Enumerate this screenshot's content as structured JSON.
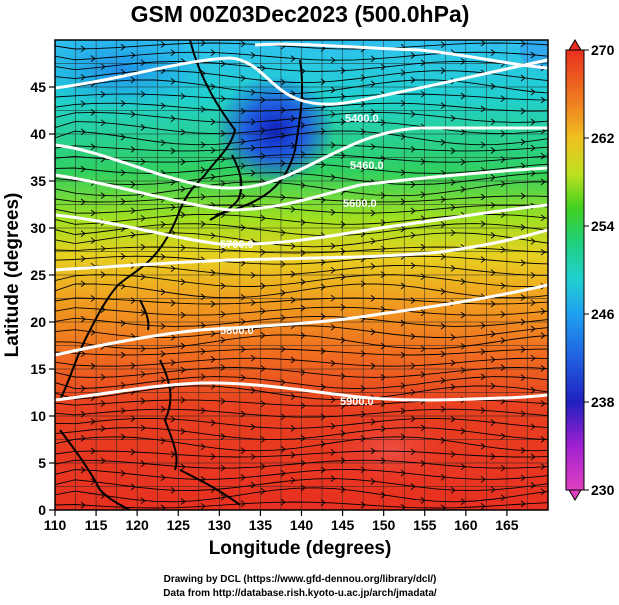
{
  "title": "GSM 00Z03Dec2023 (500.0hPa)",
  "xlabel": "Longitude (degrees)",
  "ylabel": "Latitude  (degrees)",
  "credit_line1": "Drawing by DCL (https://www.gfd-dennou.org/library/dcl/)",
  "credit_line2": "Data from http://database.rish.kyoto-u.ac.jp/arch/jmadata/",
  "x_ticks": [
    "110",
    "115",
    "120",
    "125",
    "130",
    "135",
    "140",
    "145",
    "150",
    "155",
    "160",
    "165"
  ],
  "y_ticks": [
    "0",
    "5",
    "10",
    "15",
    "20",
    "25",
    "30",
    "35",
    "40",
    "45"
  ],
  "colorbar": {
    "ticks": [
      "230",
      "238",
      "246",
      "254",
      "262",
      "270"
    ],
    "colors": [
      "#e040c0",
      "#a020d0",
      "#2020c0",
      "#2060e0",
      "#20a0f0",
      "#20d0d0",
      "#20d080",
      "#40d020",
      "#a0e020",
      "#e0e020",
      "#f0a020",
      "#f06020",
      "#e83020"
    ]
  },
  "contour_labels": [
    "5400.0",
    "5460.0",
    "5600.0",
    "5700.0",
    "5800.0",
    "5900.0"
  ],
  "chart_data": {
    "type": "heatmap",
    "title": "GSM 00Z03Dec2023 (500.0hPa)",
    "xlabel": "Longitude (degrees)",
    "ylabel": "Latitude  (degrees)",
    "xlim": [
      110,
      170
    ],
    "ylim": [
      0,
      50
    ],
    "color_range": [
      230,
      270
    ],
    "colorbar_ticks": [
      230,
      238,
      246,
      254,
      262,
      270
    ],
    "contours": [
      {
        "label": "5400.0",
        "x": 147,
        "y": 43
      },
      {
        "label": "5460.0",
        "x": 149,
        "y": 37
      },
      {
        "label": "5600.0",
        "x": 148,
        "y": 33
      },
      {
        "label": "5700.0",
        "x": 131,
        "y": 28
      },
      {
        "label": "5800.0",
        "x": 130,
        "y": 19
      },
      {
        "label": "5900.0",
        "x": 150,
        "y": 11
      }
    ]
  }
}
